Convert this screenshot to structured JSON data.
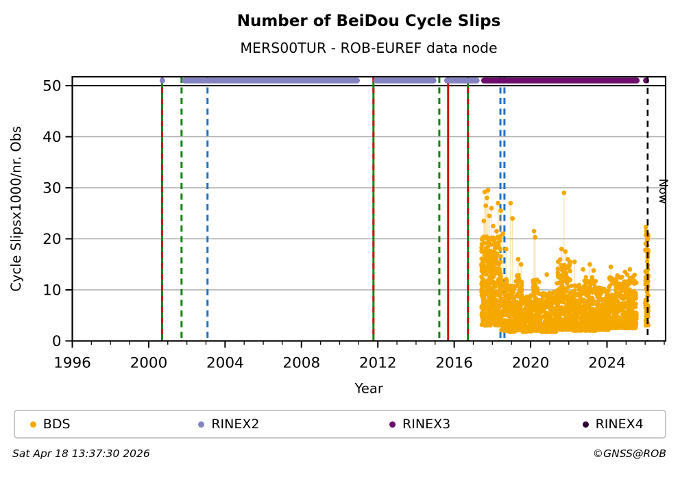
{
  "header": {
    "title": "Number of BeiDou Cycle Slips",
    "subtitle": "MERS00TUR - ROB-EUREF data node"
  },
  "footer": {
    "timestamp": "Sat Apr 18 13:37:30 2026",
    "credit": "©GNSS@ROB"
  },
  "chart_data": {
    "type": "scatter",
    "title": "Number of BeiDou Cycle Slips",
    "subtitle": "MERS00TUR - ROB-EUREF data node",
    "xlabel": "Year",
    "ylabel": "Cycle Slipsx1000/nr. Obs",
    "xlim": [
      1996,
      2027.07
    ],
    "ylim": [
      0,
      51.75
    ],
    "xticks_major": [
      1996,
      2000,
      2004,
      2008,
      2012,
      2016,
      2020,
      2024
    ],
    "xticks_minor_step": 1,
    "yticks": [
      0,
      10,
      20,
      30,
      40,
      50
    ],
    "grid": {
      "y_values": [
        10,
        20,
        30,
        40
      ],
      "color": "#ababab"
    },
    "hline": {
      "y": 50,
      "color": "#000000"
    },
    "now_line": {
      "x": 2026.13,
      "label": "Now",
      "color": "#000000",
      "style": "dashed"
    },
    "event_lines": [
      {
        "x": 2000.7,
        "color": "#128212",
        "style": "solid",
        "overlay_color": "#cc1414",
        "overlay_style": "dashed"
      },
      {
        "x": 2001.72,
        "color": "#128212",
        "style": "dashed"
      },
      {
        "x": 2003.08,
        "color": "#2171c4",
        "style": "dashed"
      },
      {
        "x": 2011.77,
        "color": "#128212",
        "style": "solid",
        "overlay_color": "#cc1414",
        "overlay_style": "dashed"
      },
      {
        "x": 2015.22,
        "color": "#128212",
        "style": "dashed"
      },
      {
        "x": 2015.68,
        "color": "#cc1414",
        "style": "solid"
      },
      {
        "x": 2016.72,
        "color": "#128212",
        "style": "solid",
        "overlay_color": "#cc1414",
        "overlay_style": "dashed"
      },
      {
        "x": 2018.42,
        "color": "#2171c4",
        "style": "dashed"
      },
      {
        "x": 2018.63,
        "color": "#2171c4",
        "style": "dashed"
      }
    ],
    "series": [
      {
        "name": "BDS",
        "color": "#F5A800",
        "kind": "scatter-cloud",
        "clusters": [
          [
            2017.42,
            2018.45,
            400,
            3.0,
            20.5,
            1.1
          ],
          [
            2018.45,
            2018.78,
            70,
            2.0,
            13.0,
            1.6
          ],
          [
            2018.78,
            2019.2,
            140,
            1.8,
            11.0,
            1.8
          ],
          [
            2019.2,
            2019.55,
            110,
            2.0,
            13.0,
            1.8
          ],
          [
            2019.55,
            2020.1,
            150,
            1.8,
            9.0,
            2.0
          ],
          [
            2020.1,
            2020.5,
            120,
            2.0,
            12.0,
            1.9
          ],
          [
            2020.5,
            2021.35,
            220,
            1.8,
            9.5,
            2.1
          ],
          [
            2021.35,
            2022.15,
            230,
            2.2,
            16.0,
            1.7
          ],
          [
            2022.15,
            2022.8,
            170,
            2.0,
            11.0,
            2.0
          ],
          [
            2022.8,
            2023.45,
            170,
            2.0,
            12.5,
            1.9
          ],
          [
            2023.45,
            2024.1,
            170,
            2.2,
            10.5,
            2.0
          ],
          [
            2024.1,
            2024.75,
            170,
            2.5,
            12.5,
            1.9
          ],
          [
            2024.75,
            2025.55,
            200,
            2.5,
            13.0,
            1.8
          ],
          [
            2026.0,
            2026.17,
            90,
            3.0,
            22.0,
            1.2
          ]
        ],
        "spikes": [
          [
            2017.55,
            23.5
          ],
          [
            2017.6,
            29.2
          ],
          [
            2017.65,
            26.5
          ],
          [
            2017.71,
            28.0
          ],
          [
            2017.77,
            29.5
          ],
          [
            2017.84,
            24.5
          ],
          [
            2017.95,
            26.0
          ],
          [
            2018.04,
            22.5
          ],
          [
            2018.22,
            21.5
          ],
          [
            2018.3,
            27.0
          ],
          [
            2018.44,
            25.5
          ],
          [
            2018.55,
            21.0
          ],
          [
            2018.72,
            18.0
          ],
          [
            2018.95,
            27.0
          ],
          [
            2019.05,
            24.0
          ],
          [
            2019.35,
            16.0
          ],
          [
            2019.5,
            15.0
          ],
          [
            2020.18,
            21.5
          ],
          [
            2020.24,
            20.3
          ],
          [
            2020.85,
            13.0
          ],
          [
            2021.45,
            15.5
          ],
          [
            2021.62,
            18.0
          ],
          [
            2021.75,
            29.0
          ],
          [
            2021.82,
            17.5
          ],
          [
            2021.95,
            16.0
          ],
          [
            2022.3,
            15.5
          ],
          [
            2022.75,
            14.0
          ],
          [
            2023.1,
            15.0
          ],
          [
            2023.3,
            13.8
          ],
          [
            2024.2,
            14.5
          ],
          [
            2024.55,
            12.8
          ],
          [
            2024.95,
            13.5
          ],
          [
            2025.2,
            14.0
          ],
          [
            2025.35,
            12.5
          ],
          [
            2026.04,
            22.3
          ],
          [
            2026.07,
            20.6
          ],
          [
            2026.1,
            18.7
          ],
          [
            2026.13,
            16.5
          ]
        ]
      },
      {
        "name": "RINEX2",
        "color": "#8583C1",
        "kind": "availability",
        "y": 51,
        "segments": [
          [
            2000.68,
            2000.75
          ],
          [
            2001.73,
            2011.06
          ],
          [
            2011.77,
            2015.07
          ],
          [
            2015.47,
            2017.33
          ]
        ]
      },
      {
        "name": "RINEX3",
        "color": "#6E0D6E",
        "kind": "availability",
        "y": 51,
        "segments": [
          [
            2017.41,
            2025.71
          ],
          [
            2025.89,
            2026.21
          ]
        ]
      },
      {
        "name": "RINEX4",
        "color": "#2A0630",
        "kind": "availability",
        "y": 51,
        "segments": []
      }
    ],
    "legend": {
      "position": "bottom",
      "entries": [
        {
          "label": "BDS",
          "color": "#F5A800"
        },
        {
          "label": "RINEX2",
          "color": "#8583C1"
        },
        {
          "label": "RINEX3",
          "color": "#6E0D6E"
        },
        {
          "label": "RINEX4",
          "color": "#2A0630"
        }
      ]
    }
  }
}
